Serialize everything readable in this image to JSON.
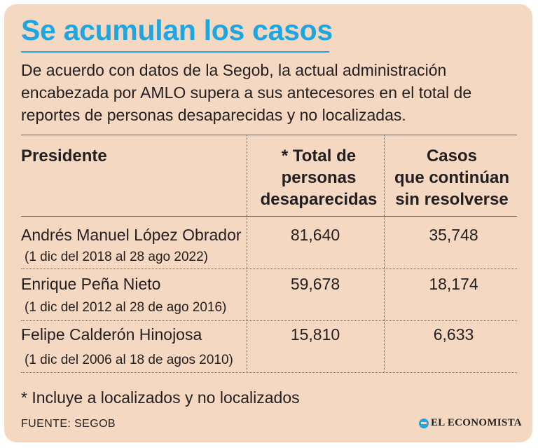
{
  "title": "Se acumulan los casos",
  "intro": "De acuerdo con datos de la Segob, la actual administración encabezada por AMLO supera a sus antecesores en el total de reportes de personas desaparecidas y no localizadas.",
  "table": {
    "headers": {
      "president": "Presidente",
      "total_line1": "* Total de",
      "total_line2": "personas",
      "total_line3": "desaparecidas",
      "unsolved_line1": "Casos",
      "unsolved_line2": "que continúan",
      "unsolved_line3": "sin resolverse"
    },
    "rows": [
      {
        "name": "Andrés Manuel López Obrador",
        "period": "(1 dic del 2018 al 28 ago 2022)",
        "total": "81,640",
        "unsolved": "35,748"
      },
      {
        "name": "Enrique Peña Nieto",
        "period": "(1 dic del 2012 al 28 de ago 2016)",
        "total": "59,678",
        "unsolved": "18,174"
      },
      {
        "name": "Felipe Calderón Hinojosa",
        "period": "(1 dic del 2006 al 18 de agos 2010)",
        "total": "15,810",
        "unsolved": "6,633"
      }
    ]
  },
  "footnote": "* Incluye a localizados y no localizados",
  "source": "FUENTE: SEGOB",
  "brand": {
    "name": "EL ECONOMISTA",
    "icon": "economista-logo-icon"
  },
  "colors": {
    "background": "#f4d8c1",
    "accent": "#1fa6e0",
    "text": "#231f20"
  }
}
